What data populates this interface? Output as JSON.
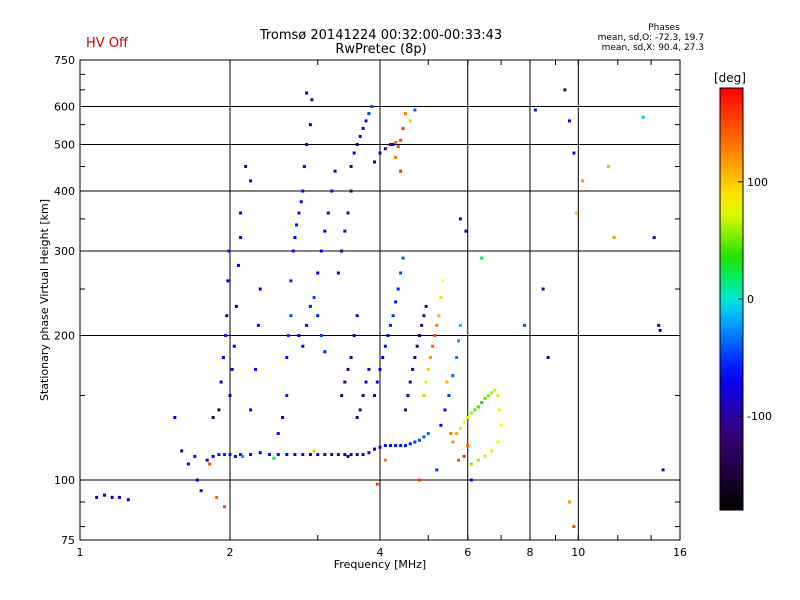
{
  "header": {
    "hv_status": "HV Off",
    "title_line1": "Tromsø 20141224 00:32:00-00:33:43",
    "title_line2": "RwPretec (8p)",
    "phase_title": "Phases",
    "phase_line1": "mean, sd,O: -72.3, 19.7",
    "phase_line2": "mean, sd,X: 90.4, 27.3"
  },
  "chart_data": {
    "type": "scatter",
    "title": "Tromsø 20141224 00:32:00-00:33:43",
    "subtitle": "RwPretec (8p)",
    "xlabel": "Frequency [MHz]",
    "ylabel": "Stationary phase Virtual Height [km]",
    "x_scale": "log",
    "y_scale": "log",
    "xlim": [
      1,
      16
    ],
    "ylim": [
      75,
      750
    ],
    "x_ticks": [
      1,
      2,
      4,
      6,
      8,
      10,
      16
    ],
    "x_gridlines": [
      2,
      4,
      6,
      8,
      10
    ],
    "y_ticks": [
      75,
      100,
      200,
      300,
      400,
      500,
      600,
      750
    ],
    "y_gridlines": [
      100,
      200,
      300,
      400,
      500,
      600
    ],
    "grid": true,
    "colorbar": {
      "label": "[deg]",
      "range": [
        -180,
        180
      ],
      "ticks": [
        100,
        0,
        -100
      ]
    },
    "points": [
      [
        1.08,
        92,
        -90
      ],
      [
        1.12,
        93,
        -88
      ],
      [
        1.16,
        92,
        -85
      ],
      [
        1.2,
        92,
        -92
      ],
      [
        1.25,
        91,
        -80
      ],
      [
        1.55,
        135,
        -70
      ],
      [
        1.6,
        115,
        -95
      ],
      [
        1.65,
        108,
        -70
      ],
      [
        1.7,
        112,
        -60
      ],
      [
        1.72,
        100,
        -85
      ],
      [
        1.75,
        95,
        -110
      ],
      [
        1.8,
        110,
        -75
      ],
      [
        1.85,
        112,
        -65
      ],
      [
        1.9,
        113,
        -60
      ],
      [
        1.95,
        113,
        -55
      ],
      [
        2.0,
        113,
        -60
      ],
      [
        2.05,
        112,
        -65
      ],
      [
        2.1,
        113,
        -70
      ],
      [
        2.2,
        113,
        -60
      ],
      [
        2.3,
        114,
        -65
      ],
      [
        2.4,
        113,
        -58
      ],
      [
        2.5,
        113,
        -60
      ],
      [
        2.6,
        113,
        -62
      ],
      [
        2.7,
        113,
        -66
      ],
      [
        2.8,
        113,
        -72
      ],
      [
        2.9,
        113,
        -70
      ],
      [
        3.0,
        113,
        -80
      ],
      [
        3.1,
        113,
        -100
      ],
      [
        3.2,
        113,
        -110
      ],
      [
        3.3,
        113,
        -105
      ],
      [
        3.4,
        113,
        -100
      ],
      [
        3.5,
        113,
        -95
      ],
      [
        3.6,
        113,
        -90
      ],
      [
        3.7,
        113,
        -85
      ],
      [
        3.8,
        114,
        -80
      ],
      [
        3.9,
        116,
        -70
      ],
      [
        4.0,
        117,
        -65
      ],
      [
        4.1,
        118,
        -60
      ],
      [
        4.2,
        118,
        -62
      ],
      [
        4.3,
        118,
        -64
      ],
      [
        4.4,
        118,
        -60
      ],
      [
        4.5,
        118,
        -58
      ],
      [
        4.6,
        119,
        -55
      ],
      [
        4.7,
        120,
        -50
      ],
      [
        4.8,
        121,
        -45
      ],
      [
        4.9,
        123,
        -40
      ],
      [
        5.0,
        125,
        -35
      ],
      [
        1.82,
        108,
        150
      ],
      [
        2.12,
        112,
        -20
      ],
      [
        2.45,
        111,
        20
      ],
      [
        2.95,
        115,
        100
      ],
      [
        3.45,
        112,
        -110
      ],
      [
        4.1,
        110,
        130
      ],
      [
        1.88,
        92,
        140
      ],
      [
        1.95,
        88,
        150
      ],
      [
        1.85,
        135,
        -140
      ],
      [
        1.9,
        140,
        -130
      ],
      [
        1.92,
        160,
        -80
      ],
      [
        1.94,
        180,
        -70
      ],
      [
        1.96,
        200,
        -60
      ],
      [
        1.97,
        220,
        -80
      ],
      [
        1.98,
        260,
        -70
      ],
      [
        1.99,
        300,
        -60
      ],
      [
        2.0,
        150,
        -90
      ],
      [
        2.02,
        170,
        -85
      ],
      [
        2.04,
        190,
        -75
      ],
      [
        2.06,
        230,
        -65
      ],
      [
        2.08,
        280,
        -70
      ],
      [
        2.1,
        320,
        -75
      ],
      [
        2.1,
        360,
        -80
      ],
      [
        2.15,
        450,
        -85
      ],
      [
        2.2,
        420,
        -75
      ],
      [
        2.2,
        140,
        -75
      ],
      [
        2.25,
        170,
        -65
      ],
      [
        2.28,
        210,
        -60
      ],
      [
        2.3,
        250,
        -70
      ],
      [
        2.5,
        125,
        -60
      ],
      [
        2.55,
        135,
        -70
      ],
      [
        2.6,
        150,
        -55
      ],
      [
        2.6,
        180,
        -60
      ],
      [
        2.62,
        200,
        -50
      ],
      [
        2.65,
        220,
        -45
      ],
      [
        2.65,
        260,
        -55
      ],
      [
        2.68,
        300,
        -60
      ],
      [
        2.7,
        320,
        -65
      ],
      [
        2.72,
        340,
        -55
      ],
      [
        2.75,
        360,
        -60
      ],
      [
        2.78,
        380,
        -65
      ],
      [
        2.8,
        400,
        -75
      ],
      [
        2.82,
        450,
        -80
      ],
      [
        2.85,
        500,
        -90
      ],
      [
        2.9,
        550,
        -95
      ],
      [
        2.92,
        620,
        -100
      ],
      [
        2.85,
        640,
        -90
      ],
      [
        2.75,
        200,
        -70
      ],
      [
        2.8,
        190,
        -65
      ],
      [
        2.85,
        210,
        -60
      ],
      [
        2.9,
        230,
        -55
      ],
      [
        2.95,
        240,
        -45
      ],
      [
        3.0,
        220,
        -55
      ],
      [
        3.05,
        200,
        -50
      ],
      [
        3.1,
        185,
        -60
      ],
      [
        3.0,
        270,
        -65
      ],
      [
        3.05,
        300,
        -75
      ],
      [
        3.1,
        330,
        -85
      ],
      [
        3.15,
        360,
        -95
      ],
      [
        3.2,
        400,
        -100
      ],
      [
        3.25,
        440,
        -110
      ],
      [
        3.35,
        150,
        -120
      ],
      [
        3.4,
        160,
        -115
      ],
      [
        3.45,
        170,
        -110
      ],
      [
        3.5,
        180,
        -105
      ],
      [
        3.55,
        200,
        -100
      ],
      [
        3.6,
        220,
        -95
      ],
      [
        3.6,
        135,
        -125
      ],
      [
        3.65,
        140,
        -120
      ],
      [
        3.7,
        150,
        -115
      ],
      [
        3.75,
        160,
        -112
      ],
      [
        3.8,
        170,
        -108
      ],
      [
        3.3,
        270,
        -100
      ],
      [
        3.35,
        300,
        -105
      ],
      [
        3.4,
        330,
        -110
      ],
      [
        3.45,
        360,
        -115
      ],
      [
        3.5,
        400,
        -120
      ],
      [
        3.5,
        450,
        -110
      ],
      [
        3.55,
        480,
        -100
      ],
      [
        3.6,
        500,
        -90
      ],
      [
        3.65,
        520,
        -80
      ],
      [
        3.7,
        540,
        -70
      ],
      [
        3.75,
        560,
        -60
      ],
      [
        3.8,
        580,
        -50
      ],
      [
        3.85,
        600,
        -40
      ],
      [
        3.9,
        460,
        -100
      ],
      [
        4.0,
        480,
        -110
      ],
      [
        4.1,
        490,
        -105
      ],
      [
        4.2,
        500,
        -95
      ],
      [
        4.25,
        500,
        -80
      ],
      [
        4.3,
        505,
        140
      ],
      [
        4.35,
        495,
        155
      ],
      [
        4.4,
        510,
        150
      ],
      [
        4.45,
        540,
        160
      ],
      [
        4.5,
        580,
        130
      ],
      [
        4.6,
        560,
        100
      ],
      [
        4.7,
        590,
        -40
      ],
      [
        4.4,
        440,
        160
      ],
      [
        4.3,
        470,
        135
      ],
      [
        3.9,
        150,
        -90
      ],
      [
        3.95,
        160,
        -85
      ],
      [
        4.0,
        170,
        -80
      ],
      [
        4.05,
        180,
        -70
      ],
      [
        4.1,
        190,
        -65
      ],
      [
        4.15,
        200,
        -60
      ],
      [
        4.2,
        210,
        -55
      ],
      [
        4.25,
        220,
        -50
      ],
      [
        4.3,
        235,
        -60
      ],
      [
        4.35,
        250,
        -55
      ],
      [
        4.4,
        270,
        -45
      ],
      [
        4.45,
        290,
        -40
      ],
      [
        4.5,
        140,
        -110
      ],
      [
        4.55,
        150,
        -108
      ],
      [
        4.6,
        160,
        -115
      ],
      [
        4.65,
        170,
        -120
      ],
      [
        4.7,
        180,
        -125
      ],
      [
        4.75,
        190,
        -130
      ],
      [
        4.8,
        200,
        -125
      ],
      [
        4.85,
        210,
        -120
      ],
      [
        4.9,
        220,
        -110
      ],
      [
        4.95,
        230,
        -100
      ],
      [
        4.9,
        150,
        60
      ],
      [
        4.95,
        160,
        70
      ],
      [
        5.0,
        170,
        100
      ],
      [
        5.05,
        180,
        120
      ],
      [
        5.1,
        190,
        140
      ],
      [
        5.15,
        200,
        150
      ],
      [
        5.2,
        210,
        130
      ],
      [
        5.25,
        220,
        110
      ],
      [
        5.3,
        240,
        90
      ],
      [
        5.35,
        260,
        80
      ],
      [
        5.3,
        130,
        -70
      ],
      [
        5.4,
        140,
        -60
      ],
      [
        5.5,
        150,
        -50
      ],
      [
        5.6,
        165,
        -40
      ],
      [
        5.7,
        180,
        -30
      ],
      [
        5.75,
        195,
        -20
      ],
      [
        5.8,
        210,
        -10
      ],
      [
        5.6,
        120,
        120
      ],
      [
        5.7,
        125,
        110
      ],
      [
        5.8,
        128,
        90
      ],
      [
        5.9,
        132,
        80
      ],
      [
        6.0,
        135,
        70
      ],
      [
        6.1,
        138,
        60
      ],
      [
        6.2,
        140,
        50
      ],
      [
        6.3,
        142,
        40
      ],
      [
        6.4,
        145,
        35
      ],
      [
        6.5,
        148,
        45
      ],
      [
        6.6,
        150,
        55
      ],
      [
        6.7,
        152,
        60
      ],
      [
        6.8,
        154,
        65
      ],
      [
        6.9,
        150,
        70
      ],
      [
        6.95,
        140,
        75
      ],
      [
        7.0,
        130,
        80
      ],
      [
        6.9,
        120,
        75
      ],
      [
        6.7,
        115,
        70
      ],
      [
        6.5,
        112,
        65
      ],
      [
        6.3,
        110,
        60
      ],
      [
        6.1,
        108,
        55
      ],
      [
        5.75,
        110,
        150
      ],
      [
        5.9,
        112,
        160
      ],
      [
        6.0,
        118,
        140
      ],
      [
        5.55,
        125,
        130
      ],
      [
        5.45,
        160,
        110
      ],
      [
        4.8,
        100,
        160
      ],
      [
        3.95,
        98,
        155
      ],
      [
        5.2,
        105,
        -50
      ],
      [
        6.1,
        100,
        -90
      ],
      [
        7.8,
        210,
        -40
      ],
      [
        8.2,
        590,
        -60
      ],
      [
        8.5,
        250,
        -110
      ],
      [
        8.7,
        180,
        -100
      ],
      [
        9.4,
        650,
        -115
      ],
      [
        9.6,
        560,
        -80
      ],
      [
        9.8,
        480,
        -70
      ],
      [
        9.9,
        360,
        100
      ],
      [
        10.2,
        420,
        120
      ],
      [
        11.5,
        450,
        110
      ],
      [
        11.8,
        320,
        120
      ],
      [
        13.5,
        570,
        -10
      ],
      [
        14.2,
        320,
        -110
      ],
      [
        14.5,
        210,
        -80
      ],
      [
        14.6,
        205,
        -120
      ],
      [
        14.8,
        105,
        -100
      ],
      [
        9.6,
        90,
        120
      ],
      [
        9.8,
        80,
        150
      ],
      [
        5.8,
        350,
        -110
      ],
      [
        5.95,
        330,
        -115
      ],
      [
        6.4,
        290,
        20
      ]
    ]
  }
}
